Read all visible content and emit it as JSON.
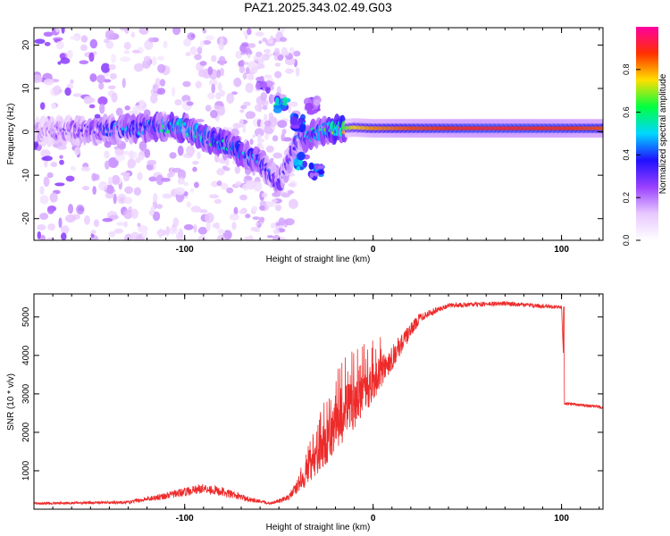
{
  "title": "PAZ1.2025.343.02.49.G03",
  "chart_data": [
    {
      "type": "heatmap",
      "xlabel": "Height of straight line (km)",
      "ylabel": "Frequency (Hz)",
      "xlim": [
        -180,
        122
      ],
      "ylim": [
        -25,
        24
      ],
      "xticks": [
        -100,
        0,
        100
      ],
      "yticks": [
        -20,
        -10,
        0,
        10,
        20
      ],
      "xtick_labels": [
        "-100",
        "0",
        "100"
      ],
      "ytick_labels": [
        "-20",
        "-10",
        "0",
        "10",
        "20"
      ],
      "colorbar": {
        "label": "Normalized spectral amplitude",
        "range": [
          0,
          1
        ],
        "ticks": [
          0.0,
          0.2,
          0.4,
          0.6,
          0.8
        ],
        "tick_labels": [
          "0.0",
          "0.2",
          "0.4",
          "0.6",
          "0.8"
        ],
        "colors": [
          "#ffffff",
          "#e8c8ff",
          "#9a40ff",
          "#2010ff",
          "#00d8ff",
          "#00ff40",
          "#ffe000",
          "#ff3000",
          "#ff00a0"
        ]
      },
      "ridge": [
        {
          "x": -180,
          "f": 0.0,
          "a": 0.15
        },
        {
          "x": -140,
          "f": 0.5,
          "a": 0.35
        },
        {
          "x": -120,
          "f": 1.0,
          "a": 0.45
        },
        {
          "x": -100,
          "f": 1.0,
          "a": 0.5
        },
        {
          "x": -90,
          "f": -1.0,
          "a": 0.5
        },
        {
          "x": -75,
          "f": -3.5,
          "a": 0.45
        },
        {
          "x": -60,
          "f": -7.0,
          "a": 0.4
        },
        {
          "x": -50,
          "f": -12.0,
          "a": 0.3
        },
        {
          "x": -40,
          "f": -2.0,
          "a": 0.35
        },
        {
          "x": -25,
          "f": 0.5,
          "a": 0.5
        },
        {
          "x": -10,
          "f": 1.0,
          "a": 0.75
        },
        {
          "x": 0,
          "f": 0.8,
          "a": 0.8
        },
        {
          "x": 20,
          "f": 0.8,
          "a": 0.85
        },
        {
          "x": 60,
          "f": 0.8,
          "a": 0.9
        },
        {
          "x": 100,
          "f": 0.8,
          "a": 0.88
        },
        {
          "x": 122,
          "f": 0.8,
          "a": 0.85
        }
      ],
      "secondary_branch": [
        {
          "x": -58,
          "f": 11.0,
          "a": 0.3
        },
        {
          "x": -48,
          "f": 6.0,
          "a": 0.5
        },
        {
          "x": -40,
          "f": 2.0,
          "a": 0.4
        },
        {
          "x": -32,
          "f": 6.0,
          "a": 0.25
        },
        {
          "x": -38,
          "f": -7.0,
          "a": 0.45
        },
        {
          "x": -30,
          "f": -9.0,
          "a": 0.4
        }
      ]
    },
    {
      "type": "line",
      "xlabel": "Height of straight line (km)",
      "ylabel": "SNR (10 * v/v)",
      "xlim": [
        -180,
        122
      ],
      "ylim": [
        0,
        5600
      ],
      "xticks": [
        -100,
        0,
        100
      ],
      "yticks": [
        1000,
        2000,
        3000,
        4000,
        5000
      ],
      "xtick_labels": [
        "-100",
        "0",
        "100"
      ],
      "ytick_labels": [
        "1000",
        "2000",
        "3000",
        "4000",
        "5000"
      ],
      "color": "#ee2b2b",
      "envelope": [
        {
          "x": -180,
          "base": 150,
          "noise": 60
        },
        {
          "x": -130,
          "base": 180,
          "noise": 80
        },
        {
          "x": -110,
          "base": 350,
          "noise": 180
        },
        {
          "x": -90,
          "base": 550,
          "noise": 250
        },
        {
          "x": -80,
          "base": 450,
          "noise": 250
        },
        {
          "x": -65,
          "base": 250,
          "noise": 120
        },
        {
          "x": -55,
          "base": 150,
          "noise": 60
        },
        {
          "x": -45,
          "base": 300,
          "noise": 150
        },
        {
          "x": -35,
          "base": 900,
          "noise": 600
        },
        {
          "x": -25,
          "base": 1700,
          "noise": 1100
        },
        {
          "x": -15,
          "base": 2500,
          "noise": 1400
        },
        {
          "x": -5,
          "base": 3000,
          "noise": 1200
        },
        {
          "x": 5,
          "base": 3600,
          "noise": 800
        },
        {
          "x": 15,
          "base": 4300,
          "noise": 500
        },
        {
          "x": 25,
          "base": 5000,
          "noise": 250
        },
        {
          "x": 40,
          "base": 5300,
          "noise": 120
        },
        {
          "x": 70,
          "base": 5350,
          "noise": 120
        },
        {
          "x": 100,
          "base": 5250,
          "noise": 100
        },
        {
          "x": 102,
          "base": 2750,
          "noise": 80
        },
        {
          "x": 122,
          "base": 2650,
          "noise": 80
        }
      ]
    }
  ]
}
